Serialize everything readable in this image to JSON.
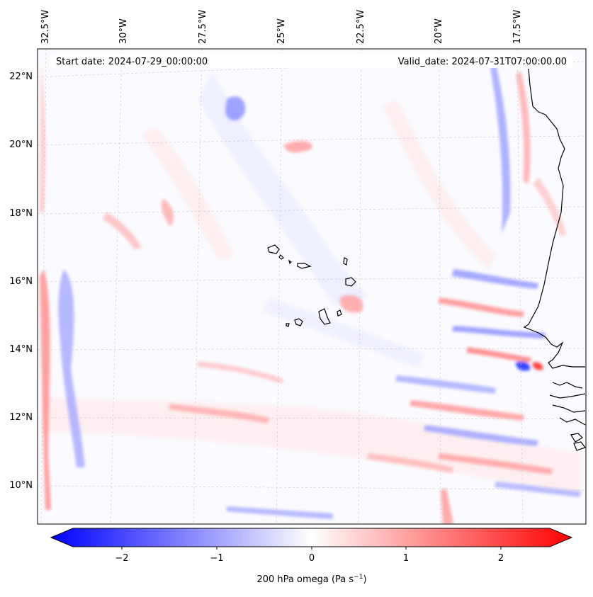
{
  "map": {
    "start_date_label": "Start date: 2024-07-29_00:00:00",
    "valid_date_label": "Valid_date: 2024-07-31T07:00:00.00",
    "lon_labels": [
      "32.5°W",
      "30°W",
      "27.5°W",
      "25°W",
      "22.5°W",
      "20°W",
      "17.5°W"
    ],
    "lat_labels": [
      "22°N",
      "20°N",
      "18°N",
      "16°N",
      "14°N",
      "12°N",
      "10°N"
    ],
    "variable": "200 hPa omega",
    "units": "Pa s",
    "units_exponent": "−1"
  },
  "colorbar": {
    "ticks": [
      "−2",
      "−1",
      "0",
      "1",
      "2"
    ],
    "tick_values": [
      -2,
      -1,
      0,
      1,
      2
    ],
    "range": [
      -2.6,
      2.6
    ],
    "negative_color": "#0000ff",
    "zero_color": "#ffffff",
    "positive_color": "#ff0000"
  }
}
